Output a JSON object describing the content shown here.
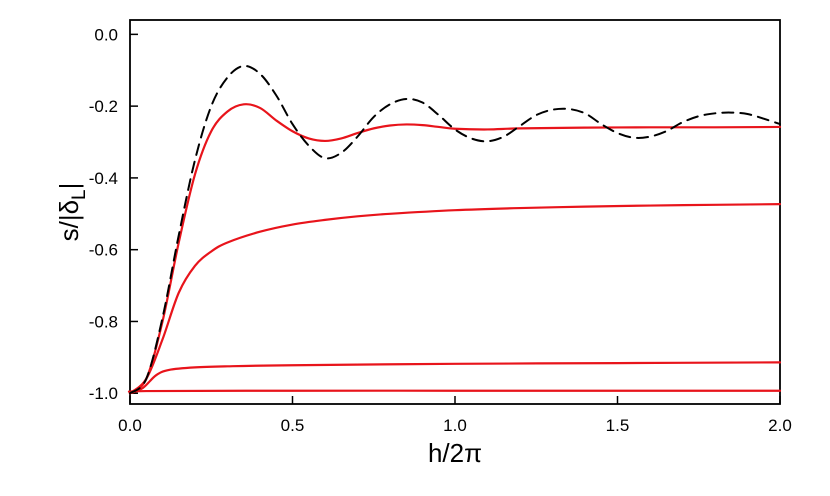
{
  "chart_data": {
    "type": "line",
    "xlabel": "h/2π",
    "ylabel": {
      "main": "s/|δ",
      "sub": "L",
      "end": "|"
    },
    "xlim": [
      0.0,
      2.0
    ],
    "ylim": [
      -1.03,
      0.04
    ],
    "x_ticks": [
      0.0,
      0.5,
      1.0,
      1.5,
      2.0
    ],
    "x_tick_labels": [
      "0.0",
      "0.5",
      "1.0",
      "1.5",
      "2.0"
    ],
    "y_ticks": [
      0.0,
      -0.2,
      -0.4,
      -0.6,
      -0.8,
      -1.0
    ],
    "y_tick_labels": [
      "0.0",
      "-0.2",
      "-0.4",
      "-0.6",
      "-0.8",
      "-1.0"
    ],
    "grid": false,
    "legend": "none",
    "series": [
      {
        "style": "dashed",
        "color": "#000000",
        "points": [
          [
            0.0,
            -1.0
          ],
          [
            0.05,
            -0.96
          ],
          [
            0.1,
            -0.79
          ],
          [
            0.15,
            -0.56
          ],
          [
            0.2,
            -0.35
          ],
          [
            0.25,
            -0.2
          ],
          [
            0.3,
            -0.12
          ],
          [
            0.35,
            -0.088
          ],
          [
            0.4,
            -0.11
          ],
          [
            0.45,
            -0.17
          ],
          [
            0.5,
            -0.25
          ],
          [
            0.55,
            -0.31
          ],
          [
            0.6,
            -0.345
          ],
          [
            0.65,
            -0.33
          ],
          [
            0.7,
            -0.285
          ],
          [
            0.75,
            -0.23
          ],
          [
            0.8,
            -0.195
          ],
          [
            0.85,
            -0.18
          ],
          [
            0.9,
            -0.19
          ],
          [
            0.95,
            -0.225
          ],
          [
            1.0,
            -0.265
          ],
          [
            1.05,
            -0.29
          ],
          [
            1.1,
            -0.298
          ],
          [
            1.15,
            -0.285
          ],
          [
            1.2,
            -0.255
          ],
          [
            1.25,
            -0.225
          ],
          [
            1.3,
            -0.21
          ],
          [
            1.35,
            -0.208
          ],
          [
            1.4,
            -0.22
          ],
          [
            1.45,
            -0.25
          ],
          [
            1.5,
            -0.275
          ],
          [
            1.55,
            -0.288
          ],
          [
            1.6,
            -0.285
          ],
          [
            1.65,
            -0.27
          ],
          [
            1.7,
            -0.245
          ],
          [
            1.75,
            -0.228
          ],
          [
            1.8,
            -0.22
          ],
          [
            1.85,
            -0.218
          ],
          [
            1.9,
            -0.222
          ],
          [
            1.95,
            -0.235
          ],
          [
            2.0,
            -0.25
          ]
        ]
      },
      {
        "style": "solid",
        "color": "#e8141b",
        "points": [
          [
            0.0,
            -1.0
          ],
          [
            0.05,
            -0.96
          ],
          [
            0.1,
            -0.8
          ],
          [
            0.15,
            -0.58
          ],
          [
            0.2,
            -0.39
          ],
          [
            0.25,
            -0.27
          ],
          [
            0.3,
            -0.215
          ],
          [
            0.35,
            -0.195
          ],
          [
            0.4,
            -0.205
          ],
          [
            0.45,
            -0.24
          ],
          [
            0.5,
            -0.27
          ],
          [
            0.55,
            -0.29
          ],
          [
            0.6,
            -0.297
          ],
          [
            0.65,
            -0.29
          ],
          [
            0.7,
            -0.275
          ],
          [
            0.75,
            -0.262
          ],
          [
            0.8,
            -0.254
          ],
          [
            0.85,
            -0.251
          ],
          [
            0.9,
            -0.253
          ],
          [
            0.95,
            -0.258
          ],
          [
            1.0,
            -0.263
          ],
          [
            1.1,
            -0.265
          ],
          [
            1.2,
            -0.262
          ],
          [
            1.4,
            -0.26
          ],
          [
            1.6,
            -0.259
          ],
          [
            1.8,
            -0.259
          ],
          [
            2.0,
            -0.258
          ]
        ]
      },
      {
        "style": "solid",
        "color": "#e8141b",
        "points": [
          [
            0.0,
            -1.0
          ],
          [
            0.05,
            -0.96
          ],
          [
            0.1,
            -0.85
          ],
          [
            0.15,
            -0.72
          ],
          [
            0.2,
            -0.645
          ],
          [
            0.25,
            -0.605
          ],
          [
            0.3,
            -0.58
          ],
          [
            0.4,
            -0.55
          ],
          [
            0.5,
            -0.53
          ],
          [
            0.6,
            -0.517
          ],
          [
            0.7,
            -0.507
          ],
          [
            0.8,
            -0.5
          ],
          [
            1.0,
            -0.49
          ],
          [
            1.2,
            -0.484
          ],
          [
            1.4,
            -0.48
          ],
          [
            1.6,
            -0.477
          ],
          [
            1.8,
            -0.475
          ],
          [
            2.0,
            -0.473
          ]
        ]
      },
      {
        "style": "solid",
        "color": "#e8141b",
        "points": [
          [
            0.0,
            -1.0
          ],
          [
            0.04,
            -0.985
          ],
          [
            0.08,
            -0.95
          ],
          [
            0.12,
            -0.935
          ],
          [
            0.2,
            -0.928
          ],
          [
            0.3,
            -0.925
          ],
          [
            0.5,
            -0.922
          ],
          [
            1.0,
            -0.918
          ],
          [
            1.5,
            -0.916
          ],
          [
            2.0,
            -0.914
          ]
        ]
      },
      {
        "style": "solid",
        "color": "#e8141b",
        "points": [
          [
            0.0,
            -0.997
          ],
          [
            0.05,
            -0.994
          ],
          [
            0.5,
            -0.993
          ],
          [
            1.0,
            -0.993
          ],
          [
            1.5,
            -0.993
          ],
          [
            2.0,
            -0.993
          ]
        ]
      }
    ]
  }
}
